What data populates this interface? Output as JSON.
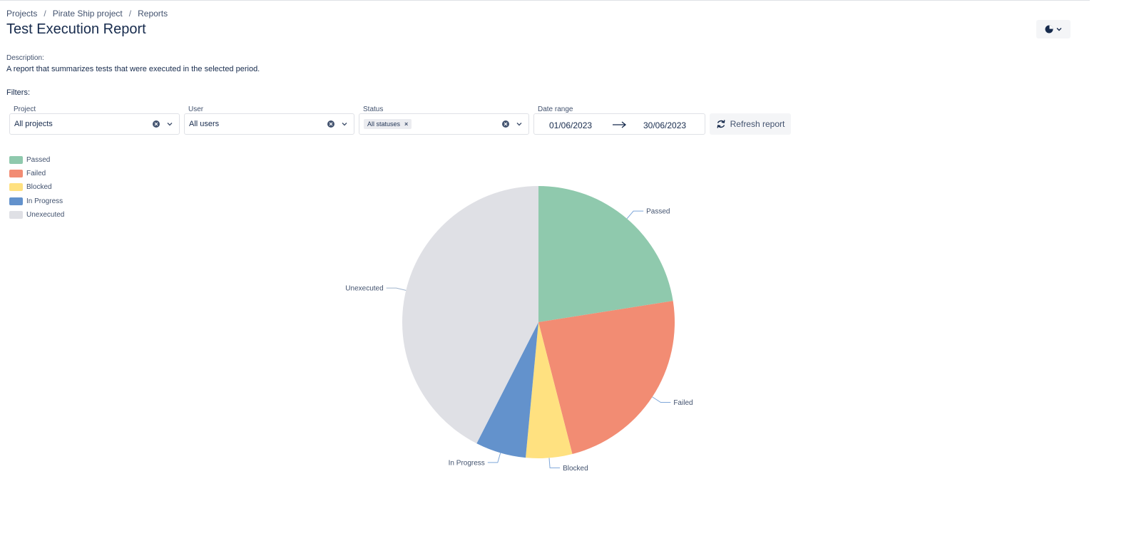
{
  "breadcrumb": [
    "Projects",
    "Pirate Ship project",
    "Reports"
  ],
  "page_title": "Test Execution Report",
  "chart_type_icon": "pie-chart-icon",
  "description": {
    "label": "Description:",
    "text": "A report that summarizes tests that were executed in the selected period."
  },
  "filters": {
    "label": "Filters:",
    "project": {
      "label": "Project",
      "value": "All projects"
    },
    "user": {
      "label": "User",
      "value": "All users"
    },
    "status": {
      "label": "Status",
      "tag": "All statuses"
    },
    "date_range": {
      "label": "Date range",
      "from": "01/06/2023",
      "to": "30/06/2023"
    },
    "refresh_label": "Refresh report"
  },
  "chart_data": {
    "type": "pie",
    "categories": [
      "Passed",
      "Failed",
      "Blocked",
      "In Progress",
      "Unexecuted"
    ],
    "values": [
      22.5,
      23.5,
      5.5,
      6,
      42.5
    ],
    "colors": [
      "#8fc9ad",
      "#f28c73",
      "#ffe180",
      "#6392cc",
      "#dfe0e5"
    ],
    "legend_position": "top-left"
  }
}
